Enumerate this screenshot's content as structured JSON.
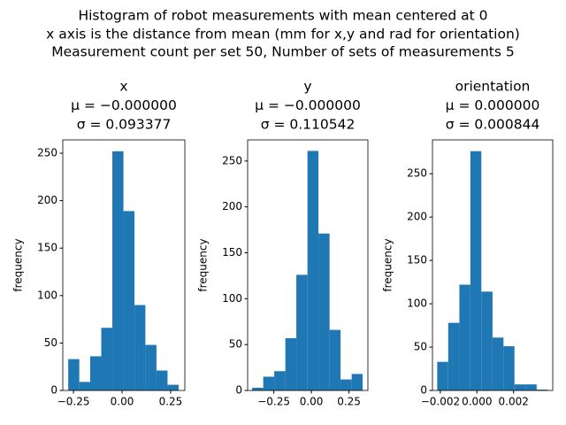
{
  "suptitle": [
    "Histogram of robot measurements with mean centered at 0",
    "x axis is the distance from mean (mm for x,y and rad for orientation)",
    "Measurement count per set 50, Number of sets of measurements 5"
  ],
  "chart_data": [
    {
      "type": "histogram",
      "title_lines": [
        "x",
        "μ = −0.000000",
        "σ = 0.093377"
      ],
      "y_label": "frequency",
      "color": "#1f77b4",
      "bins": [
        -0.277,
        -0.22,
        -0.164,
        -0.107,
        -0.05,
        0.007,
        0.064,
        0.12,
        0.177,
        0.234,
        0.291
      ],
      "values": [
        33,
        9,
        36,
        66,
        252,
        189,
        90,
        48,
        21,
        6
      ],
      "xlim": [
        -0.305,
        0.323
      ],
      "xticks": [
        {
          "value": -0.25,
          "label": "−0.25"
        },
        {
          "value": 0,
          "label": "0.00"
        },
        0.25
      ],
      "ylim": [
        0,
        264
      ],
      "yticks": [
        0,
        50,
        100,
        150,
        200,
        250
      ]
    },
    {
      "type": "histogram",
      "title_lines": [
        "y",
        "μ = −0.000000",
        "σ = 0.110542"
      ],
      "y_label": "frequency",
      "color": "#1f77b4",
      "bins": [
        -0.394,
        -0.32,
        -0.247,
        -0.173,
        -0.1,
        -0.026,
        0.047,
        0.121,
        0.194,
        0.268,
        0.341
      ],
      "values": [
        3,
        15,
        21,
        57,
        126,
        261,
        171,
        66,
        12,
        18
      ],
      "xlim": [
        -0.424,
        0.376
      ],
      "xticks": [
        {
          "value": -0.25,
          "label": "−0.25"
        },
        {
          "value": 0,
          "label": "0.00"
        },
        0.25
      ],
      "ylim": [
        0,
        273
      ],
      "yticks": [
        0,
        50,
        100,
        150,
        200,
        250
      ]
    },
    {
      "type": "histogram",
      "title_lines": [
        "orientation",
        "μ = 0.000000",
        "σ = 0.000844"
      ],
      "y_label": "frequency",
      "color": "#1f77b4",
      "bins": [
        -0.00217,
        -0.00157,
        -0.00096,
        -0.00036,
        0.00024,
        0.00085,
        0.00145,
        0.00205,
        0.00265,
        0.00326,
        0.00386
      ],
      "values": [
        33,
        78,
        122,
        276,
        114,
        61,
        51,
        7,
        7,
        1
      ],
      "xlim": [
        -0.00243,
        0.00414
      ],
      "xticks": [
        {
          "value": -0.002,
          "label": "−0.002"
        },
        {
          "value": 0,
          "label": "0.000"
        },
        0.002
      ],
      "ylim": [
        0,
        289
      ],
      "yticks": [
        0,
        50,
        100,
        150,
        200,
        250
      ]
    }
  ]
}
